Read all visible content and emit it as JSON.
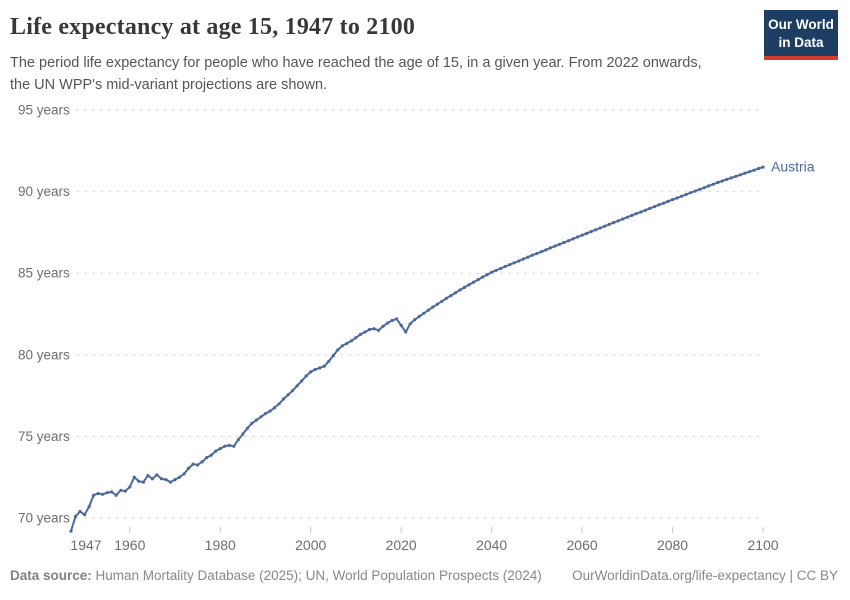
{
  "header": {
    "title": "Life expectancy at age 15, 1947 to 2100",
    "subtitle_line1": "The period life expectancy for people who have reached the age of 15, in a given year. From 2022 onwards,",
    "subtitle_line2": "the UN WPP's mid-variant projections are shown.",
    "logo_line1": "Our World",
    "logo_line2": "in Data"
  },
  "footer": {
    "source_label": "Data source:",
    "source_text": " Human Mortality Database (2025); UN, World Population Prospects (2024)",
    "attribution": "OurWorldinData.org/life-expectancy | CC BY"
  },
  "chart_data": {
    "type": "line",
    "title": "Life expectancy at age 15, 1947 to 2100",
    "entity": "Austria",
    "unit": "years",
    "grid": true,
    "legend_position": "end-of-line",
    "projection_start_year": 2022,
    "xlim": [
      1947,
      2100
    ],
    "ylim": [
      70,
      95
    ],
    "y_ticks": [
      {
        "value": 70,
        "label": "70 years"
      },
      {
        "value": 75,
        "label": "75 years"
      },
      {
        "value": 80,
        "label": "80 years"
      },
      {
        "value": 85,
        "label": "85 years"
      },
      {
        "value": 90,
        "label": "90 years"
      },
      {
        "value": 95,
        "label": "95 years"
      }
    ],
    "x_ticks": [
      {
        "year": 1947,
        "label": "1947",
        "tick": false
      },
      {
        "year": 1960,
        "label": "1960",
        "tick": true
      },
      {
        "year": 1980,
        "label": "1980",
        "tick": true
      },
      {
        "year": 2000,
        "label": "2000",
        "tick": true
      },
      {
        "year": 2020,
        "label": "2020",
        "tick": true
      },
      {
        "year": 2040,
        "label": "2040",
        "tick": true
      },
      {
        "year": 2060,
        "label": "2060",
        "tick": true
      },
      {
        "year": 2080,
        "label": "2080",
        "tick": true
      },
      {
        "year": 2100,
        "label": "2100",
        "tick": true
      }
    ],
    "colors": {
      "line": "#4c6a9c",
      "entity_label": "#4c6a9c",
      "grid": "#dadada",
      "tick": "#c6c6c6",
      "axis_text": "#6e6e6e"
    },
    "series": [
      {
        "name": "Austria",
        "x": [
          1947,
          1948,
          1949,
          1950,
          1951,
          1952,
          1953,
          1954,
          1955,
          1956,
          1957,
          1958,
          1959,
          1960,
          1961,
          1962,
          1963,
          1964,
          1965,
          1966,
          1967,
          1968,
          1969,
          1970,
          1971,
          1972,
          1973,
          1974,
          1975,
          1976,
          1977,
          1978,
          1979,
          1980,
          1981,
          1982,
          1983,
          1984,
          1985,
          1986,
          1987,
          1988,
          1989,
          1990,
          1991,
          1992,
          1993,
          1994,
          1995,
          1996,
          1997,
          1998,
          1999,
          2000,
          2001,
          2002,
          2003,
          2004,
          2005,
          2006,
          2007,
          2008,
          2009,
          2010,
          2011,
          2012,
          2013,
          2014,
          2015,
          2016,
          2017,
          2018,
          2019,
          2020,
          2021,
          2022,
          2023,
          2024,
          2025,
          2026,
          2027,
          2028,
          2029,
          2030,
          2031,
          2032,
          2033,
          2034,
          2035,
          2036,
          2037,
          2038,
          2039,
          2040,
          2041,
          2042,
          2043,
          2044,
          2045,
          2046,
          2047,
          2048,
          2049,
          2050,
          2051,
          2052,
          2053,
          2054,
          2055,
          2056,
          2057,
          2058,
          2059,
          2060,
          2061,
          2062,
          2063,
          2064,
          2065,
          2066,
          2067,
          2068,
          2069,
          2070,
          2071,
          2072,
          2073,
          2074,
          2075,
          2076,
          2077,
          2078,
          2079,
          2080,
          2081,
          2082,
          2083,
          2084,
          2085,
          2086,
          2087,
          2088,
          2089,
          2090,
          2091,
          2092,
          2093,
          2094,
          2095,
          2096,
          2097,
          2098,
          2099,
          2100
        ],
        "values": [
          69.2,
          70.1,
          70.4,
          70.2,
          70.7,
          71.4,
          71.5,
          71.45,
          71.55,
          71.6,
          71.4,
          71.7,
          71.65,
          71.9,
          72.5,
          72.25,
          72.2,
          72.6,
          72.4,
          72.65,
          72.4,
          72.35,
          72.2,
          72.35,
          72.5,
          72.7,
          73.05,
          73.3,
          73.25,
          73.45,
          73.7,
          73.85,
          74.1,
          74.25,
          74.4,
          74.45,
          74.4,
          74.8,
          75.15,
          75.5,
          75.8,
          76.0,
          76.2,
          76.4,
          76.55,
          76.75,
          77.0,
          77.3,
          77.55,
          77.8,
          78.1,
          78.4,
          78.7,
          78.95,
          79.1,
          79.2,
          79.3,
          79.6,
          79.95,
          80.3,
          80.55,
          80.7,
          80.85,
          81.05,
          81.25,
          81.4,
          81.55,
          81.6,
          81.5,
          81.75,
          81.95,
          82.1,
          82.2,
          81.8,
          81.4,
          81.9,
          82.15,
          82.35,
          82.54,
          82.73,
          82.92,
          83.1,
          83.28,
          83.46,
          83.63,
          83.8,
          83.97,
          84.13,
          84.29,
          84.45,
          84.61,
          84.76,
          84.91,
          85.06,
          85.18,
          85.29,
          85.41,
          85.52,
          85.64,
          85.75,
          85.87,
          85.98,
          86.1,
          86.21,
          86.32,
          86.43,
          86.55,
          86.66,
          86.77,
          86.88,
          86.99,
          87.1,
          87.22,
          87.33,
          87.44,
          87.55,
          87.66,
          87.77,
          87.88,
          87.99,
          88.1,
          88.21,
          88.32,
          88.43,
          88.54,
          88.65,
          88.75,
          88.86,
          88.97,
          89.08,
          89.19,
          89.29,
          89.4,
          89.51,
          89.61,
          89.72,
          89.82,
          89.93,
          90.03,
          90.14,
          90.24,
          90.35,
          90.45,
          90.56,
          90.65,
          90.75,
          90.84,
          90.94,
          91.03,
          91.13,
          91.22,
          91.31,
          91.41,
          91.5
        ]
      }
    ]
  }
}
